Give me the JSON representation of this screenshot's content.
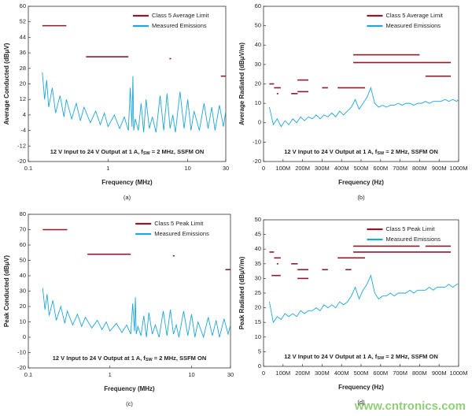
{
  "chart_data": [
    {
      "type": "line",
      "caption": "(a)",
      "xlabel": "Frequency (MHz)",
      "ylabel": "Average Conducted (dBμV)",
      "xscale": "log",
      "xlim": [
        0.1,
        30
      ],
      "xticks": [
        0.1,
        1,
        10,
        30
      ],
      "ylim": [
        -20,
        60
      ],
      "yticks": [
        -20,
        -12,
        -4,
        4,
        12,
        20,
        28,
        36,
        44,
        52,
        60
      ],
      "annotation": [
        "12 V Input to 24 V Output at 1 A, f",
        "SW",
        " = 2 MHz, SSFM ON"
      ],
      "series": [
        {
          "name": "Class 5 Average Limit",
          "color": "#8c1c2c",
          "segments": [
            {
              "x": [
                0.15,
                0.3
              ],
              "value": 50
            },
            {
              "x": [
                0.53,
                1.8
              ],
              "value": 34
            },
            {
              "x": [
                5.9,
                6.2
              ],
              "value": 33
            },
            {
              "x": [
                26,
                30
              ],
              "value": 24
            }
          ]
        },
        {
          "name": "Measured Emissions",
          "color": "#1ea6d8",
          "x": [
            0.15,
            0.16,
            0.17,
            0.18,
            0.2,
            0.22,
            0.25,
            0.28,
            0.3,
            0.35,
            0.4,
            0.45,
            0.5,
            0.6,
            0.7,
            0.8,
            0.9,
            1,
            1.2,
            1.4,
            1.6,
            1.8,
            1.9,
            2,
            2.05,
            2.1,
            2.2,
            2.4,
            2.6,
            2.8,
            3,
            3.3,
            3.6,
            4,
            4.5,
            5,
            5.5,
            6,
            6.5,
            7,
            8,
            9,
            10,
            11,
            12,
            14,
            16,
            18,
            20,
            22,
            25,
            28,
            30
          ],
          "values": [
            26,
            12,
            22,
            8,
            18,
            5,
            14,
            3,
            12,
            2,
            10,
            1,
            8,
            0,
            6,
            -1,
            5,
            -2,
            4,
            -3,
            3,
            -4,
            18,
            -2,
            24,
            -4,
            2,
            -4,
            10,
            -5,
            12,
            -3,
            3,
            -5,
            14,
            -4,
            15,
            -3,
            4,
            -5,
            16,
            -3,
            12,
            -4,
            6,
            -4,
            10,
            -3,
            8,
            -4,
            9,
            -2,
            6
          ]
        }
      ]
    },
    {
      "type": "line",
      "caption": "(b)",
      "xlabel": "Frequency (Hz)",
      "ylabel": "Average Radiated (dBμV/m)",
      "xscale": "linear",
      "xlim": [
        0,
        1000000000
      ],
      "xticks": [
        0,
        {
          "value": 100000000,
          "label": "100M"
        },
        {
          "value": 200000000,
          "label": "200M"
        },
        {
          "value": 300000000,
          "label": "300M"
        },
        {
          "value": 400000000,
          "label": "400M"
        },
        {
          "value": 500000000,
          "label": "500M"
        },
        {
          "value": 600000000,
          "label": "600M"
        },
        {
          "value": 700000000,
          "label": "700M"
        },
        {
          "value": 800000000,
          "label": "800M"
        },
        {
          "value": 900000000,
          "label": "900M"
        },
        {
          "value": 1000000000,
          "label": "1000M"
        }
      ],
      "ylim": [
        -20,
        60
      ],
      "yticks": [
        -20,
        -10,
        0,
        10,
        20,
        30,
        40,
        50,
        60
      ],
      "annotation": [
        "12 V Input to 24 V Output at 1 A, f",
        "SW",
        " = 2 MHz, SSFM ON"
      ],
      "series": [
        {
          "name": "Class 5 Average Limit",
          "color": "#8c1c2c",
          "segments": [
            {
              "x": [
                30000000,
                54000000
              ],
              "value": 20
            },
            {
              "x": [
                54000000,
                88000000
              ],
              "value": 18
            },
            {
              "x": [
                68000000,
                76000000
              ],
              "value": 15
            },
            {
              "x": [
                142000000,
                175000000
              ],
              "value": 15
            },
            {
              "x": [
                174000000,
                230000000
              ],
              "value": 16
            },
            {
              "x": [
                174000000,
                230000000
              ],
              "value": 22
            },
            {
              "x": [
                300000000,
                330000000
              ],
              "value": 18
            },
            {
              "x": [
                380000000,
                520000000
              ],
              "value": 18
            },
            {
              "x": [
                460000000,
                800000000
              ],
              "value": 35
            },
            {
              "x": [
                460000000,
                960000000
              ],
              "value": 31
            },
            {
              "x": [
                830000000,
                960000000
              ],
              "value": 24
            }
          ]
        },
        {
          "name": "Measured Emissions",
          "color": "#1ea6d8",
          "x": [
            30000000,
            50000000,
            70000000,
            90000000,
            110000000,
            130000000,
            150000000,
            170000000,
            190000000,
            210000000,
            230000000,
            250000000,
            270000000,
            290000000,
            310000000,
            330000000,
            350000000,
            370000000,
            390000000,
            410000000,
            430000000,
            450000000,
            470000000,
            490000000,
            510000000,
            530000000,
            550000000,
            570000000,
            590000000,
            610000000,
            630000000,
            650000000,
            670000000,
            690000000,
            710000000,
            730000000,
            750000000,
            770000000,
            790000000,
            810000000,
            830000000,
            850000000,
            870000000,
            890000000,
            910000000,
            930000000,
            950000000,
            970000000,
            990000000,
            1000000000
          ],
          "values": [
            8,
            -1,
            2,
            -2,
            1,
            -1,
            2,
            0,
            3,
            1,
            3,
            2,
            4,
            2,
            4,
            3,
            5,
            3,
            6,
            4,
            6,
            8,
            12,
            7,
            10,
            13,
            18,
            10,
            8,
            9,
            8,
            9,
            9,
            10,
            9,
            10,
            10,
            9,
            10,
            10,
            11,
            10,
            11,
            11,
            11,
            12,
            11,
            12,
            11,
            12
          ]
        }
      ]
    },
    {
      "type": "line",
      "caption": "(c)",
      "xlabel": "Frequency (MHz)",
      "ylabel": "Peak Conducted (dBμV)",
      "xscale": "log",
      "xlim": [
        0.1,
        30
      ],
      "xticks": [
        0.1,
        1,
        10,
        30
      ],
      "ylim": [
        -20,
        80
      ],
      "yticks": [
        -20,
        -10,
        0,
        10,
        20,
        30,
        40,
        50,
        60,
        70,
        80
      ],
      "annotation": [
        "12 V Input to 24 V Output at 1 A, f",
        "SW",
        " = 2 MHz, SSFM ON"
      ],
      "series": [
        {
          "name": "Class 5 Peak Limit",
          "color": "#8c1c2c",
          "segments": [
            {
              "x": [
                0.15,
                0.3
              ],
              "value": 70
            },
            {
              "x": [
                0.53,
                1.8
              ],
              "value": 54
            },
            {
              "x": [
                5.9,
                6.2
              ],
              "value": 53
            },
            {
              "x": [
                26,
                30
              ],
              "value": 44
            }
          ]
        },
        {
          "name": "Measured Emissions",
          "color": "#1ea6d8",
          "x": [
            0.15,
            0.16,
            0.17,
            0.18,
            0.2,
            0.22,
            0.25,
            0.28,
            0.3,
            0.35,
            0.4,
            0.45,
            0.5,
            0.6,
            0.7,
            0.8,
            0.9,
            1,
            1.2,
            1.4,
            1.6,
            1.8,
            1.9,
            2,
            2.05,
            2.1,
            2.2,
            2.4,
            2.6,
            2.8,
            3,
            3.3,
            3.6,
            4,
            4.5,
            5,
            5.5,
            6,
            6.5,
            7,
            8,
            9,
            10,
            11,
            12,
            14,
            16,
            18,
            20,
            22,
            25,
            28,
            30
          ],
          "values": [
            32,
            18,
            28,
            14,
            24,
            11,
            20,
            9,
            17,
            8,
            15,
            7,
            13,
            6,
            11,
            5,
            10,
            4,
            9,
            3,
            8,
            2,
            22,
            4,
            26,
            2,
            7,
            1,
            14,
            0,
            16,
            2,
            8,
            0,
            17,
            1,
            18,
            2,
            8,
            0,
            17,
            1,
            15,
            0,
            10,
            0,
            13,
            1,
            11,
            0,
            12,
            2,
            8
          ]
        }
      ]
    },
    {
      "type": "line",
      "caption": "(d)",
      "xlabel": "Frequency (Hz)",
      "ylabel": "Peak Radiated (dBμV/m)",
      "xscale": "linear",
      "xlim": [
        0,
        1000000000
      ],
      "xticks": [
        0,
        {
          "value": 100000000,
          "label": "100M"
        },
        {
          "value": 200000000,
          "label": "200M"
        },
        {
          "value": 300000000,
          "label": "300M"
        },
        {
          "value": 400000000,
          "label": "400M"
        },
        {
          "value": 500000000,
          "label": "500M"
        },
        {
          "value": 600000000,
          "label": "600M"
        },
        {
          "value": 700000000,
          "label": "700M"
        },
        {
          "value": 800000000,
          "label": "800M"
        },
        {
          "value": 900000000,
          "label": "900M"
        },
        {
          "value": 1000000000,
          "label": "1000M"
        }
      ],
      "ylim": [
        0,
        50
      ],
      "yticks": [
        0,
        5,
        10,
        15,
        20,
        25,
        30,
        35,
        40,
        45,
        50
      ],
      "annotation": [
        "12 V Input to 24 V Output at 1 A, f",
        "SW",
        " = 2 MHz, SSFM ON"
      ],
      "series": [
        {
          "name": "Class 5 Peak Limit",
          "color": "#8c1c2c",
          "segments": [
            {
              "x": [
                30000000,
                54000000
              ],
              "value": 39
            },
            {
              "x": [
                54000000,
                88000000
              ],
              "value": 37
            },
            {
              "x": [
                68000000,
                76000000
              ],
              "value": 35
            },
            {
              "x": [
                41000000,
                88000000
              ],
              "value": 31
            },
            {
              "x": [
                142000000,
                175000000
              ],
              "value": 35
            },
            {
              "x": [
                174000000,
                230000000
              ],
              "value": 33
            },
            {
              "x": [
                174000000,
                230000000
              ],
              "value": 30
            },
            {
              "x": [
                300000000,
                330000000
              ],
              "value": 33
            },
            {
              "x": [
                380000000,
                520000000
              ],
              "value": 37
            },
            {
              "x": [
                420000000,
                450000000
              ],
              "value": 33
            },
            {
              "x": [
                460000000,
                800000000
              ],
              "value": 41
            },
            {
              "x": [
                460000000,
                960000000
              ],
              "value": 39
            },
            {
              "x": [
                830000000,
                960000000
              ],
              "value": 41
            }
          ]
        },
        {
          "name": "Measured Emissions",
          "color": "#1ea6d8",
          "x": [
            30000000,
            50000000,
            70000000,
            90000000,
            110000000,
            130000000,
            150000000,
            170000000,
            190000000,
            210000000,
            230000000,
            250000000,
            270000000,
            290000000,
            310000000,
            330000000,
            350000000,
            370000000,
            390000000,
            410000000,
            430000000,
            450000000,
            470000000,
            490000000,
            510000000,
            530000000,
            550000000,
            570000000,
            590000000,
            610000000,
            630000000,
            650000000,
            670000000,
            690000000,
            710000000,
            730000000,
            750000000,
            770000000,
            790000000,
            810000000,
            830000000,
            850000000,
            870000000,
            890000000,
            910000000,
            930000000,
            950000000,
            970000000,
            990000000,
            1000000000
          ],
          "values": [
            22,
            15,
            17,
            16,
            18,
            17,
            18,
            17,
            19,
            18,
            19,
            19,
            20,
            19,
            21,
            20,
            21,
            20,
            22,
            21,
            22,
            24,
            27,
            23,
            26,
            28,
            31,
            25,
            23,
            24,
            24,
            25,
            24,
            25,
            25,
            25,
            26,
            25,
            26,
            26,
            26,
            27,
            26,
            27,
            27,
            27,
            28,
            27,
            28,
            28
          ]
        }
      ]
    }
  ],
  "watermark": "www.cntronics.com"
}
